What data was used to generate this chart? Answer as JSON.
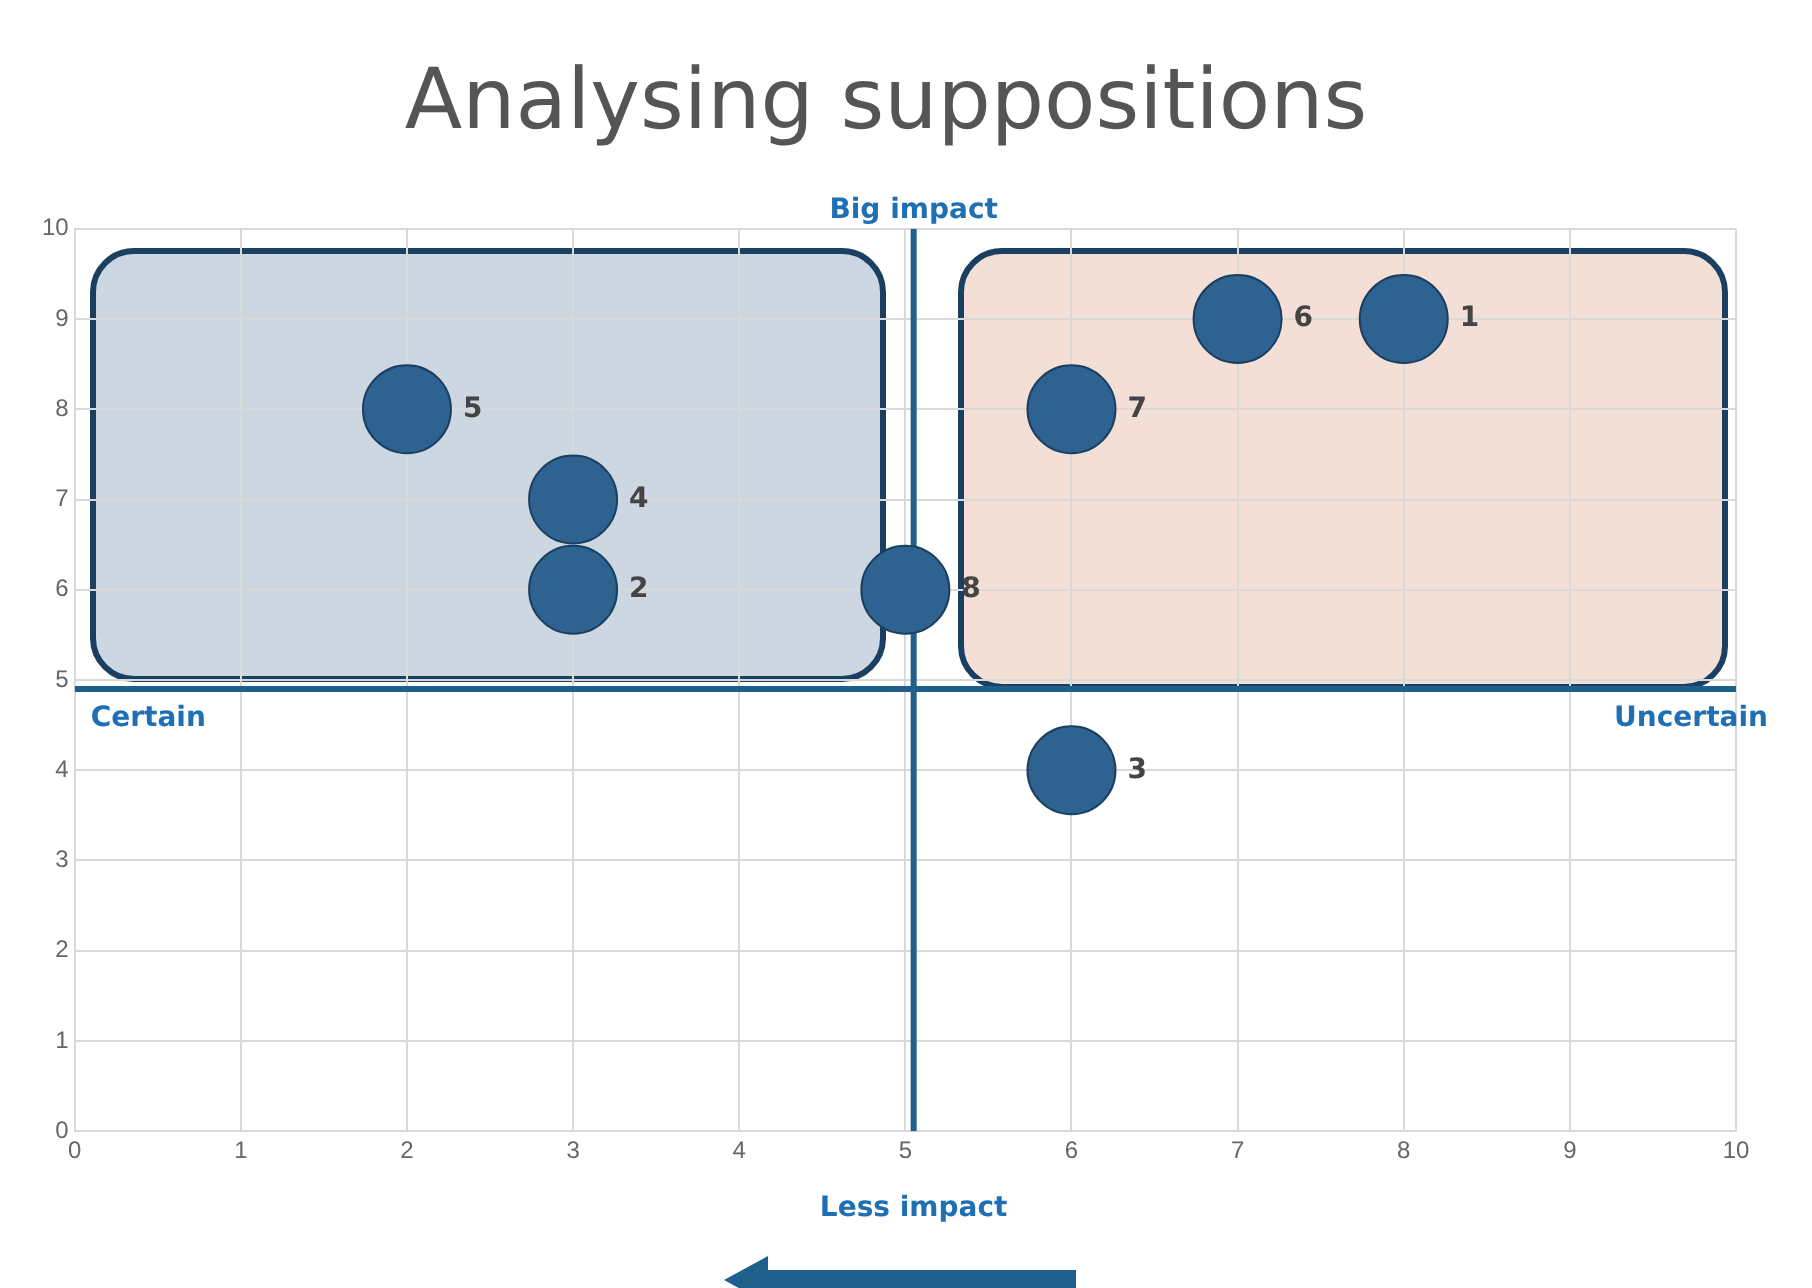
{
  "chart_data": {
    "type": "scatter",
    "title": "Analysing suppositions",
    "series": [
      {
        "color": "#2e6391",
        "x": [
          8,
          3,
          6,
          3,
          2,
          7,
          6,
          5
        ],
        "values": [
          9,
          6,
          4,
          7,
          8,
          9,
          8,
          6
        ]
      }
    ],
    "xlim": [
      0,
      10
    ],
    "xticks": [
      0,
      1,
      2,
      3,
      4,
      5,
      6,
      7,
      8,
      9,
      10
    ],
    "ylim": [
      0,
      10
    ],
    "yticks": [
      0,
      1,
      2,
      3,
      4,
      5,
      6,
      7,
      8,
      9,
      10
    ],
    "grid": true,
    "legend": false,
    "marker": "circle",
    "ref_lines": [
      {
        "axis": "x",
        "value": 5.05,
        "label": "Big impact",
        "color": "#1f5f8b"
      },
      {
        "axis": "y",
        "value": 4.9,
        "label": "Uncertain",
        "color": "#1f5f8b"
      }
    ],
    "annotations": [
      "Less impact",
      "Certain",
      {
        "text": "1",
        "x": 8,
        "y": 9
      },
      {
        "text": "2",
        "x": 3,
        "y": 6
      },
      {
        "text": "3",
        "x": 6,
        "y": 4
      },
      {
        "text": "4",
        "x": 3,
        "y": 7
      },
      {
        "text": "5",
        "x": 2,
        "y": 8
      },
      {
        "text": "6",
        "x": 7,
        "y": 9
      },
      {
        "text": "7",
        "x": 6,
        "y": 8
      },
      {
        "text": "8",
        "x": 5,
        "y": 6
      }
    ]
  }
}
